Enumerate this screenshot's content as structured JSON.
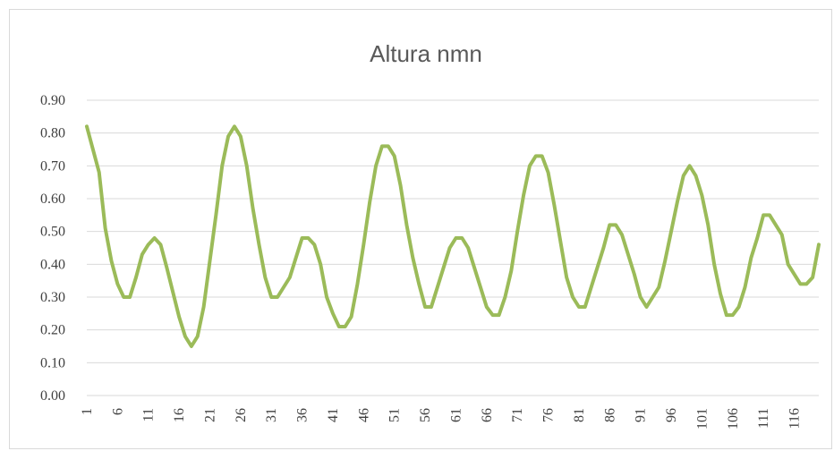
{
  "chart_data": {
    "type": "line",
    "title": "Altura nmn",
    "xlabel": "",
    "ylabel": "",
    "ylim": [
      0,
      0.9
    ],
    "y_ticks": [
      "0.00",
      "0.10",
      "0.20",
      "0.30",
      "0.40",
      "0.50",
      "0.60",
      "0.70",
      "0.80",
      "0.90"
    ],
    "x_ticks": [
      "1",
      "6",
      "11",
      "16",
      "21",
      "26",
      "31",
      "36",
      "41",
      "46",
      "51",
      "56",
      "61",
      "66",
      "71",
      "76",
      "81",
      "86",
      "91",
      "96",
      "101",
      "106",
      "111",
      "116"
    ],
    "x_range": [
      1,
      120
    ],
    "grid": true,
    "legend": "none",
    "colors": {
      "series": "#9bbb59",
      "grid": "#d9d9d9",
      "title": "#595959",
      "tick": "#404040"
    },
    "series": [
      {
        "x": [
          1,
          3,
          4,
          5,
          6,
          7,
          8,
          9,
          10,
          11,
          12,
          13,
          14,
          16,
          17,
          18,
          19,
          20,
          22,
          23,
          24,
          25,
          26,
          27,
          28,
          29,
          30,
          31,
          32,
          33,
          34,
          35,
          36,
          37,
          38,
          39,
          40,
          41,
          42,
          43,
          44,
          45,
          46,
          47,
          48,
          49,
          50,
          51,
          52,
          53,
          54,
          55,
          56,
          57,
          58,
          59,
          60,
          61,
          62,
          63,
          64,
          65,
          66,
          67,
          68,
          69,
          70,
          71,
          72,
          73,
          74,
          75,
          76,
          77,
          78,
          79,
          80,
          81,
          82,
          83,
          84,
          85,
          86,
          87,
          88,
          89,
          90,
          91,
          92,
          93,
          94,
          95,
          96,
          97,
          98,
          99,
          100,
          101,
          102,
          103,
          104,
          105,
          106,
          107,
          108,
          109,
          110,
          111,
          112,
          113,
          114,
          115,
          116,
          117,
          118,
          119,
          120
        ],
        "values": [
          0.82,
          0.68,
          0.51,
          0.41,
          0.34,
          0.3,
          0.3,
          0.36,
          0.43,
          0.46,
          0.48,
          0.46,
          0.39,
          0.24,
          0.18,
          0.15,
          0.18,
          0.27,
          0.55,
          0.7,
          0.79,
          0.82,
          0.79,
          0.7,
          0.57,
          0.46,
          0.36,
          0.3,
          0.3,
          0.33,
          0.36,
          0.42,
          0.48,
          0.48,
          0.46,
          0.4,
          0.3,
          0.25,
          0.21,
          0.21,
          0.24,
          0.34,
          0.46,
          0.59,
          0.7,
          0.76,
          0.76,
          0.73,
          0.64,
          0.52,
          0.42,
          0.34,
          0.27,
          0.27,
          0.33,
          0.39,
          0.45,
          0.48,
          0.48,
          0.45,
          0.39,
          0.33,
          0.27,
          0.245,
          0.245,
          0.3,
          0.38,
          0.5,
          0.61,
          0.7,
          0.73,
          0.73,
          0.68,
          0.58,
          0.47,
          0.36,
          0.3,
          0.27,
          0.27,
          0.33,
          0.39,
          0.45,
          0.52,
          0.52,
          0.49,
          0.43,
          0.37,
          0.3,
          0.27,
          0.3,
          0.33,
          0.41,
          0.5,
          0.59,
          0.67,
          0.7,
          0.67,
          0.61,
          0.52,
          0.4,
          0.31,
          0.245,
          0.245,
          0.27,
          0.33,
          0.42,
          0.48,
          0.55,
          0.55,
          0.52,
          0.49,
          0.4,
          0.37,
          0.34,
          0.34,
          0.36,
          0.46
        ]
      }
    ]
  }
}
